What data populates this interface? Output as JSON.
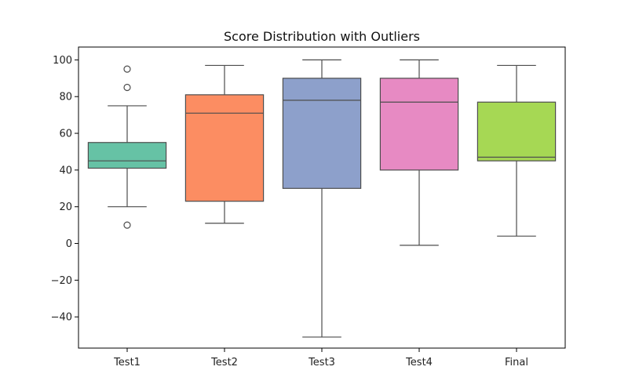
{
  "chart_data": {
    "type": "box",
    "title": "Score Distribution with Outliers",
    "xlabel": "",
    "ylabel": "",
    "ylim": [
      -57,
      107
    ],
    "yticks": [
      -40,
      -20,
      0,
      20,
      40,
      60,
      80,
      100
    ],
    "ytick_labels": [
      "−40",
      "−20",
      "0",
      "20",
      "40",
      "60",
      "80",
      "100"
    ],
    "grid": false,
    "series": [
      {
        "category": "Test1",
        "whisker_low": 20,
        "q1": 41,
        "median": 45,
        "q3": 55,
        "whisker_high": 75,
        "outliers": [
          10,
          85,
          95
        ],
        "color": "#66c2a5"
      },
      {
        "category": "Test2",
        "whisker_low": 11,
        "q1": 23,
        "median": 71,
        "q3": 81,
        "whisker_high": 97,
        "outliers": [],
        "color": "#fc8d62"
      },
      {
        "category": "Test3",
        "whisker_low": -51,
        "q1": 30,
        "median": 78,
        "q3": 90,
        "whisker_high": 100,
        "outliers": [],
        "color": "#8da0cb"
      },
      {
        "category": "Test4",
        "whisker_low": -1,
        "q1": 40,
        "median": 77,
        "q3": 90,
        "whisker_high": 100,
        "outliers": [],
        "color": "#e78ac3"
      },
      {
        "category": "Final",
        "whisker_low": 4,
        "q1": 45,
        "median": 47,
        "q3": 77,
        "whisker_high": 97,
        "outliers": [],
        "color": "#a6d854"
      }
    ]
  }
}
